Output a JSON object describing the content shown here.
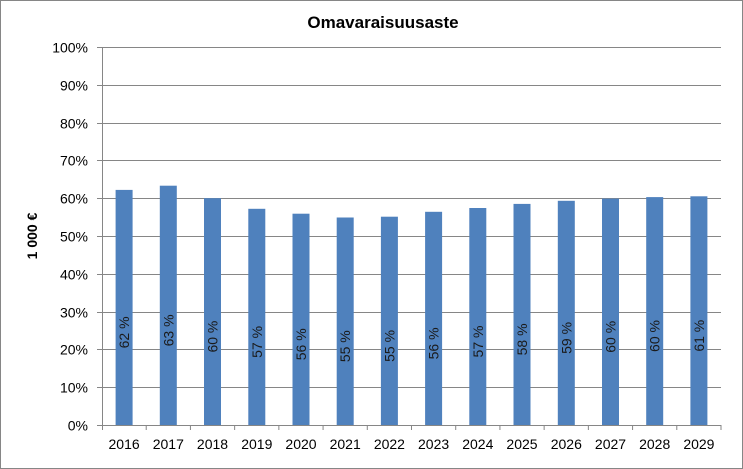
{
  "chart_data": {
    "type": "bar",
    "title": "Omavaraisuusaste",
    "xlabel": "",
    "ylabel": "1 000 €",
    "ylim": [
      0,
      100
    ],
    "y_ticks": [
      "0%",
      "10%",
      "20%",
      "30%",
      "40%",
      "50%",
      "60%",
      "70%",
      "80%",
      "90%",
      "100%"
    ],
    "grid": true,
    "legend": "none",
    "categories": [
      "2016",
      "2017",
      "2018",
      "2019",
      "2020",
      "2021",
      "2022",
      "2023",
      "2024",
      "2025",
      "2026",
      "2027",
      "2028",
      "2029"
    ],
    "values": [
      62.2,
      63.3,
      60.0,
      57.2,
      55.9,
      54.9,
      55.1,
      56.4,
      57.4,
      58.5,
      59.3,
      59.9,
      60.3,
      60.5
    ],
    "data_labels": [
      "62 %",
      "63 %",
      "60 %",
      "57 %",
      "56 %",
      "55 %",
      "55 %",
      "56 %",
      "57 %",
      "58 %",
      "59 %",
      "60 %",
      "60 %",
      "61 %"
    ],
    "colors": {
      "bar": "#4f81bd",
      "grid": "#868686"
    }
  }
}
